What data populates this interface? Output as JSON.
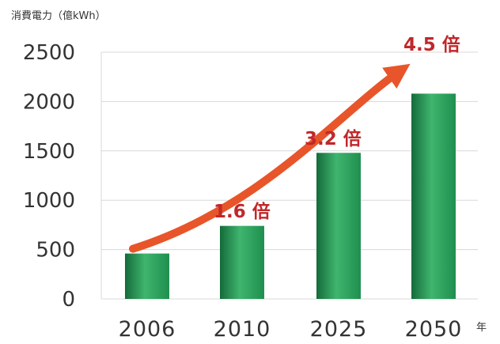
{
  "chart_data": {
    "type": "bar",
    "ylabel": "消費電力（億kWh）",
    "xunit": "年",
    "categories": [
      "2006",
      "2010",
      "2025",
      "2050"
    ],
    "values": [
      460,
      740,
      1480,
      2080
    ],
    "ylim": [
      0,
      2500
    ],
    "yticks": [
      "0",
      "500",
      "1000",
      "1500",
      "2000",
      "2500"
    ],
    "grid": true,
    "annotations": [
      "1.6 倍",
      "3.2 倍",
      "4.5 倍"
    ],
    "colors": {
      "bar": "#1f8f4f",
      "bar_light": "#3fb56e",
      "bar_dark": "#146b3a",
      "arrow": "#e8552a",
      "annotation": "#c0282a",
      "grid": "#d8d8d8",
      "axis_text": "#333333"
    }
  }
}
